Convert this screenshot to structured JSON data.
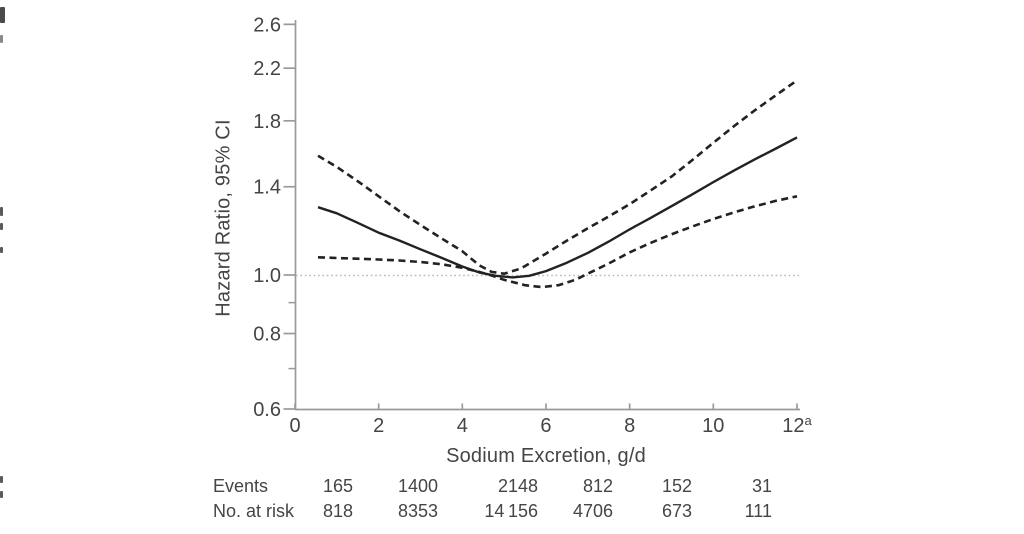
{
  "chart_data": {
    "type": "line",
    "title": "",
    "xlabel": "Sodium Excretion, g/d",
    "ylabel": "Hazard Ratio, 95% CI",
    "x_scale": "linear",
    "y_scale": "log",
    "xlim": [
      0,
      12
    ],
    "ylim": [
      0.6,
      2.6
    ],
    "grid": false,
    "legend": "none",
    "x_ticks": [
      {
        "label": "0",
        "value": 0
      },
      {
        "label": "2",
        "value": 2
      },
      {
        "label": "4",
        "value": 4
      },
      {
        "label": "6",
        "value": 6
      },
      {
        "label": "8",
        "value": 8
      },
      {
        "label": "10",
        "value": 10
      },
      {
        "label": "12",
        "value": 12,
        "superscript": "a"
      }
    ],
    "y_ticks": [
      {
        "label": "0.6",
        "value": 0.6
      },
      {
        "label": "0.8",
        "value": 0.8
      },
      {
        "label": "1.0",
        "value": 1.0
      },
      {
        "label": "1.4",
        "value": 1.4
      },
      {
        "label": "1.8",
        "value": 1.8
      },
      {
        "label": "2.2",
        "value": 2.2
      },
      {
        "label": "2.6",
        "value": 2.6
      }
    ],
    "y_minor_ticks": [
      0.7,
      0.9
    ],
    "reference_line_y": 1.0,
    "series": [
      {
        "name": "hazard-ratio",
        "style": "solid",
        "points": [
          [
            0.55,
            1.295
          ],
          [
            1,
            1.265
          ],
          [
            1.5,
            1.22
          ],
          [
            2,
            1.175
          ],
          [
            2.5,
            1.14
          ],
          [
            3,
            1.103
          ],
          [
            3.5,
            1.068
          ],
          [
            4,
            1.033
          ],
          [
            4.4,
            1.01
          ],
          [
            4.8,
            0.997
          ],
          [
            5.2,
            0.991
          ],
          [
            5.6,
            0.997
          ],
          [
            6,
            1.015
          ],
          [
            6.5,
            1.048
          ],
          [
            7,
            1.088
          ],
          [
            7.5,
            1.136
          ],
          [
            8,
            1.19
          ],
          [
            8.5,
            1.243
          ],
          [
            9,
            1.3
          ],
          [
            9.5,
            1.36
          ],
          [
            10,
            1.425
          ],
          [
            10.5,
            1.49
          ],
          [
            11,
            1.555
          ],
          [
            11.5,
            1.62
          ],
          [
            12,
            1.69
          ]
        ]
      },
      {
        "name": "ci-upper",
        "style": "dashed",
        "points": [
          [
            0.55,
            1.575
          ],
          [
            1,
            1.51
          ],
          [
            1.5,
            1.43
          ],
          [
            2,
            1.35
          ],
          [
            2.5,
            1.275
          ],
          [
            3,
            1.21
          ],
          [
            3.5,
            1.15
          ],
          [
            4,
            1.095
          ],
          [
            4.4,
            1.038
          ],
          [
            4.7,
            1.012
          ],
          [
            5,
            1.005
          ],
          [
            5.4,
            1.025
          ],
          [
            6,
            1.085
          ],
          [
            6.5,
            1.14
          ],
          [
            7,
            1.195
          ],
          [
            7.5,
            1.25
          ],
          [
            8,
            1.31
          ],
          [
            8.5,
            1.38
          ],
          [
            9,
            1.455
          ],
          [
            9.5,
            1.55
          ],
          [
            10,
            1.655
          ],
          [
            10.5,
            1.765
          ],
          [
            11,
            1.875
          ],
          [
            11.5,
            1.985
          ],
          [
            12,
            2.1
          ]
        ]
      },
      {
        "name": "ci-lower",
        "style": "dashed",
        "points": [
          [
            0.55,
            1.07
          ],
          [
            1,
            1.067
          ],
          [
            1.5,
            1.064
          ],
          [
            2,
            1.061
          ],
          [
            2.5,
            1.057
          ],
          [
            3,
            1.051
          ],
          [
            3.5,
            1.042
          ],
          [
            4,
            1.028
          ],
          [
            4.4,
            1.012
          ],
          [
            4.7,
            0.998
          ],
          [
            5,
            0.982
          ],
          [
            5.5,
            0.962
          ],
          [
            5.9,
            0.955
          ],
          [
            6.3,
            0.962
          ],
          [
            6.7,
            0.982
          ],
          [
            7,
            1.005
          ],
          [
            7.5,
            1.045
          ],
          [
            8,
            1.09
          ],
          [
            8.5,
            1.13
          ],
          [
            9,
            1.168
          ],
          [
            9.5,
            1.203
          ],
          [
            10,
            1.238
          ],
          [
            10.5,
            1.27
          ],
          [
            11,
            1.3
          ],
          [
            11.5,
            1.327
          ],
          [
            12,
            1.35
          ]
        ]
      }
    ],
    "risk_table": {
      "rows": [
        {
          "label": "Events",
          "values": [
            "165",
            "1400",
            "2148",
            "812",
            "152",
            "31"
          ]
        },
        {
          "label": "No. at risk",
          "values": [
            "818",
            "8353",
            "14 156",
            "4706",
            "673",
            "111"
          ]
        }
      ]
    }
  },
  "colors": {
    "text": "#454545",
    "axis": "#9a9a9a",
    "curve": "#222222",
    "reference_line": "#b8b8b8",
    "background": "#ffffff"
  }
}
